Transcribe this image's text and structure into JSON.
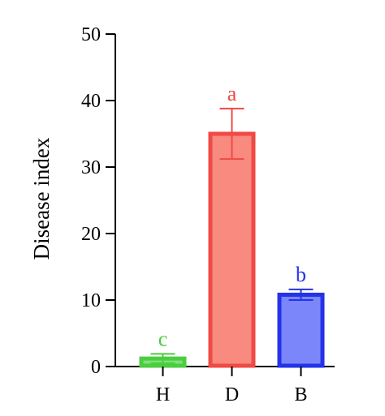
{
  "chart_data": {
    "type": "bar",
    "title": "",
    "xlabel": "",
    "ylabel": "Disease index",
    "ylim": [
      0,
      50
    ],
    "yticks": [
      0,
      10,
      20,
      30,
      40,
      50
    ],
    "grid": false,
    "legend": "none",
    "categories": [
      "H",
      "D",
      "B"
    ],
    "values": [
      1.2,
      35.0,
      10.8
    ],
    "errors": [
      0.7,
      3.8,
      0.8
    ],
    "significance": [
      "c",
      "a",
      "b"
    ],
    "bar_fill_colors": [
      "#7fe07a",
      "#f98a80",
      "#7b86fb"
    ],
    "bar_edge_colors": [
      "#4ccd3f",
      "#ef4a44",
      "#2432e8"
    ]
  }
}
